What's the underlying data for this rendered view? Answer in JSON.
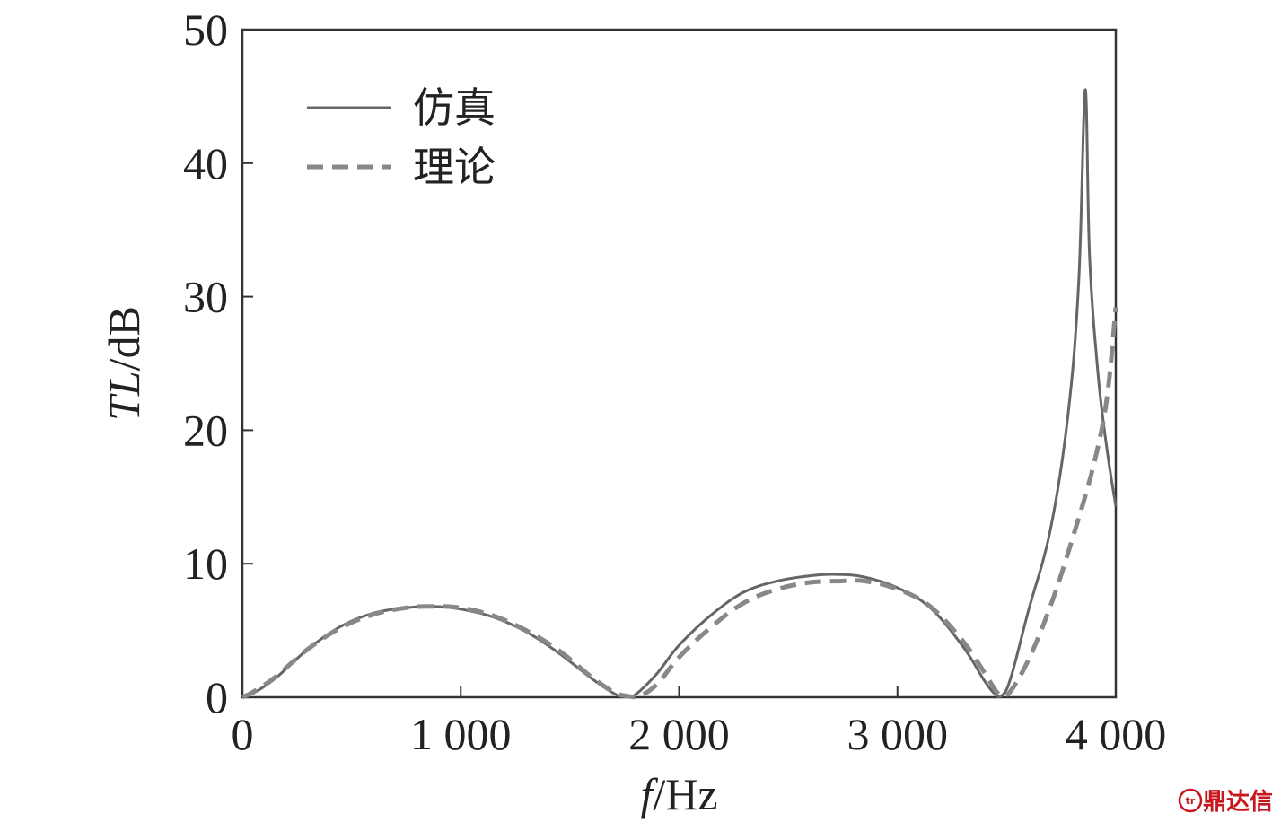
{
  "chart_data": {
    "type": "line",
    "xlabel": {
      "italic": "f",
      "unit": "/Hz"
    },
    "ylabel": {
      "italic": "TL",
      "unit": "/dB"
    },
    "xlim": [
      0,
      4000
    ],
    "ylim": [
      0,
      50
    ],
    "x_ticks": [
      0,
      1000,
      2000,
      3000,
      4000
    ],
    "x_tick_labels": [
      "0",
      "1 000",
      "2 000",
      "3 000",
      "4 000"
    ],
    "y_ticks": [
      0,
      10,
      20,
      30,
      40,
      50
    ],
    "y_tick_labels": [
      "0",
      "10",
      "20",
      "30",
      "40",
      "50"
    ],
    "grid": false,
    "legend_position": "top-left",
    "series": [
      {
        "name": "仿真",
        "style": "solid",
        "color": "#666666",
        "x": [
          0,
          50,
          150,
          300,
          450,
          600,
          750,
          870,
          1000,
          1150,
          1300,
          1450,
          1600,
          1700,
          1750,
          1800,
          1900,
          2000,
          2150,
          2300,
          2450,
          2600,
          2720,
          2850,
          3000,
          3150,
          3300,
          3400,
          3450,
          3480,
          3520,
          3600,
          3700,
          3780,
          3830,
          3860,
          3880,
          3920,
          3960,
          4000
        ],
        "y": [
          0,
          0.3,
          1.4,
          3.6,
          5.3,
          6.3,
          6.7,
          6.8,
          6.6,
          6.0,
          4.9,
          3.3,
          1.4,
          0.3,
          0.05,
          0.2,
          1.8,
          3.9,
          6.2,
          7.9,
          8.7,
          9.1,
          9.2,
          9.0,
          8.2,
          6.7,
          3.8,
          1.2,
          0.2,
          0.15,
          1.5,
          6.5,
          12.5,
          21,
          31,
          45.5,
          33,
          24,
          18.5,
          14.3
        ]
      },
      {
        "name": "理论",
        "style": "dashed",
        "color": "#888888",
        "x": [
          0,
          50,
          150,
          300,
          450,
          600,
          750,
          870,
          1000,
          1150,
          1300,
          1450,
          1600,
          1700,
          1760,
          1820,
          1900,
          2000,
          2150,
          2300,
          2450,
          2600,
          2740,
          2850,
          3000,
          3150,
          3300,
          3400,
          3450,
          3480,
          3520,
          3600,
          3700,
          3800,
          3900,
          3960,
          4000
        ],
        "y": [
          0,
          0.4,
          1.5,
          3.6,
          5.2,
          6.2,
          6.7,
          6.8,
          6.7,
          6.1,
          5.0,
          3.5,
          1.5,
          0.4,
          0.1,
          0.1,
          1.0,
          3.0,
          5.3,
          7.1,
          8.1,
          8.6,
          8.7,
          8.7,
          8.1,
          6.8,
          4.2,
          1.8,
          0.5,
          0.1,
          0.5,
          2.8,
          6.8,
          11.8,
          17.5,
          22.5,
          29.2
        ]
      }
    ]
  },
  "watermark": {
    "text": "鼎达信",
    "badge": "tr",
    "color": "#c8161d"
  }
}
